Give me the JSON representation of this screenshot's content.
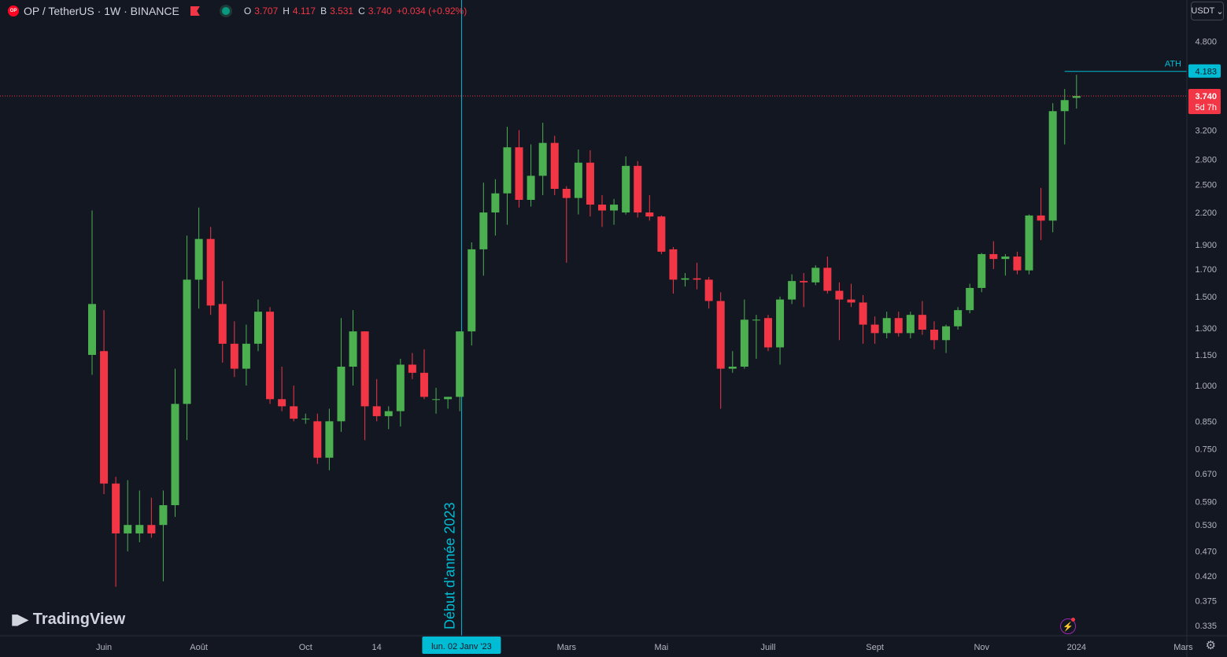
{
  "header": {
    "logo_text": "OP",
    "symbol": "OP / TetherUS · 1W · BINANCE",
    "ohlc": [
      {
        "key": "O",
        "value": "3.707"
      },
      {
        "key": "H",
        "value": "4.117"
      },
      {
        "key": "B",
        "value": "3.531"
      },
      {
        "key": "C",
        "value": "3.740"
      },
      {
        "key": "",
        "value": "+0.034 (+0.92%)"
      }
    ]
  },
  "currency_button": "USDT",
  "branding": "TradingView",
  "colors": {
    "up": "#4caf50",
    "down": "#f23645",
    "accent": "#2962ff",
    "ath_line": "#00bcd4",
    "background": "#131722"
  },
  "chart_data": {
    "type": "candlestick",
    "y_scale": "log",
    "ylim": [
      0.32,
      5.2
    ],
    "y_ticks": [
      "4.800",
      "3.200",
      "2.800",
      "2.500",
      "2.200",
      "1.900",
      "1.700",
      "1.500",
      "1.300",
      "1.150",
      "1.000",
      "0.850",
      "0.750",
      "0.670",
      "0.590",
      "0.530",
      "0.470",
      "0.420",
      "0.375",
      "0.335"
    ],
    "x_tick_labels": [
      {
        "label": "Juin",
        "index": 1
      },
      {
        "label": "Août",
        "index": 9
      },
      {
        "label": "Oct",
        "index": 18
      },
      {
        "label": "14",
        "index": 24
      },
      {
        "label": "Mars",
        "index": 40
      },
      {
        "label": "Mai",
        "index": 48
      },
      {
        "label": "Juill",
        "index": 57
      },
      {
        "label": "Sept",
        "index": 66
      },
      {
        "label": "Nov",
        "index": 75
      },
      {
        "label": "2024",
        "index": 83
      },
      {
        "label": "Mars",
        "index": 92
      }
    ],
    "vertical_marker": {
      "index": 31.15,
      "label": "Début d'année 2023",
      "date_label": "lun. 02 Janv '23"
    },
    "ath": {
      "label": "ATH",
      "value": "4.183",
      "from_index": 82
    },
    "last_price": {
      "value": "3.740",
      "countdown": "5d 7h"
    },
    "candles": [
      {
        "o": 1.15,
        "h": 2.22,
        "l": 1.05,
        "c": 1.45
      },
      {
        "o": 1.17,
        "h": 1.41,
        "l": 0.61,
        "c": 0.64
      },
      {
        "o": 0.64,
        "h": 0.66,
        "l": 0.4,
        "c": 0.51
      },
      {
        "o": 0.51,
        "h": 0.65,
        "l": 0.47,
        "c": 0.53
      },
      {
        "o": 0.51,
        "h": 0.62,
        "l": 0.49,
        "c": 0.53
      },
      {
        "o": 0.53,
        "h": 0.6,
        "l": 0.5,
        "c": 0.51
      },
      {
        "o": 0.53,
        "h": 0.62,
        "l": 0.41,
        "c": 0.58
      },
      {
        "o": 0.58,
        "h": 1.08,
        "l": 0.55,
        "c": 0.92
      },
      {
        "o": 0.92,
        "h": 1.98,
        "l": 0.78,
        "c": 1.62
      },
      {
        "o": 1.62,
        "h": 2.25,
        "l": 1.42,
        "c": 1.95
      },
      {
        "o": 1.95,
        "h": 2.06,
        "l": 1.38,
        "c": 1.44
      },
      {
        "o": 1.45,
        "h": 1.61,
        "l": 1.11,
        "c": 1.21
      },
      {
        "o": 1.21,
        "h": 1.34,
        "l": 1.04,
        "c": 1.08
      },
      {
        "o": 1.08,
        "h": 1.32,
        "l": 1.0,
        "c": 1.21
      },
      {
        "o": 1.21,
        "h": 1.48,
        "l": 1.17,
        "c": 1.4
      },
      {
        "o": 1.4,
        "h": 1.43,
        "l": 0.92,
        "c": 0.94
      },
      {
        "o": 0.94,
        "h": 1.09,
        "l": 0.89,
        "c": 0.91
      },
      {
        "o": 0.91,
        "h": 1.0,
        "l": 0.85,
        "c": 0.86
      },
      {
        "o": 0.86,
        "h": 0.88,
        "l": 0.84,
        "c": 0.86
      },
      {
        "o": 0.85,
        "h": 0.88,
        "l": 0.7,
        "c": 0.72
      },
      {
        "o": 0.72,
        "h": 0.9,
        "l": 0.68,
        "c": 0.85
      },
      {
        "o": 0.85,
        "h": 1.36,
        "l": 0.81,
        "c": 1.09
      },
      {
        "o": 1.09,
        "h": 1.41,
        "l": 1.0,
        "c": 1.28
      },
      {
        "o": 1.28,
        "h": 1.28,
        "l": 0.78,
        "c": 0.91
      },
      {
        "o": 0.91,
        "h": 1.03,
        "l": 0.85,
        "c": 0.87
      },
      {
        "o": 0.87,
        "h": 0.91,
        "l": 0.82,
        "c": 0.89
      },
      {
        "o": 0.89,
        "h": 1.13,
        "l": 0.83,
        "c": 1.1
      },
      {
        "o": 1.1,
        "h": 1.16,
        "l": 1.03,
        "c": 1.06
      },
      {
        "o": 1.06,
        "h": 1.18,
        "l": 0.94,
        "c": 0.95
      },
      {
        "o": 0.94,
        "h": 0.99,
        "l": 0.88,
        "c": 0.94
      },
      {
        "o": 0.94,
        "h": 0.95,
        "l": 0.9,
        "c": 0.95
      },
      {
        "o": 0.95,
        "h": 1.28,
        "l": 0.89,
        "c": 1.28
      },
      {
        "o": 1.28,
        "h": 1.92,
        "l": 1.2,
        "c": 1.86
      },
      {
        "o": 1.86,
        "h": 2.52,
        "l": 1.65,
        "c": 2.2
      },
      {
        "o": 2.2,
        "h": 2.56,
        "l": 1.98,
        "c": 2.4
      },
      {
        "o": 2.4,
        "h": 3.25,
        "l": 2.08,
        "c": 2.96
      },
      {
        "o": 2.96,
        "h": 3.2,
        "l": 2.25,
        "c": 2.33
      },
      {
        "o": 2.33,
        "h": 3.0,
        "l": 2.26,
        "c": 2.6
      },
      {
        "o": 2.6,
        "h": 3.31,
        "l": 2.38,
        "c": 3.02
      },
      {
        "o": 3.02,
        "h": 3.12,
        "l": 2.38,
        "c": 2.45
      },
      {
        "o": 2.45,
        "h": 2.48,
        "l": 1.75,
        "c": 2.35
      },
      {
        "o": 2.35,
        "h": 2.93,
        "l": 2.18,
        "c": 2.76
      },
      {
        "o": 2.76,
        "h": 2.92,
        "l": 2.16,
        "c": 2.28
      },
      {
        "o": 2.28,
        "h": 2.38,
        "l": 2.06,
        "c": 2.22
      },
      {
        "o": 2.22,
        "h": 2.34,
        "l": 2.08,
        "c": 2.28
      },
      {
        "o": 2.2,
        "h": 2.84,
        "l": 2.18,
        "c": 2.72
      },
      {
        "o": 2.72,
        "h": 2.78,
        "l": 2.15,
        "c": 2.2
      },
      {
        "o": 2.2,
        "h": 2.38,
        "l": 2.12,
        "c": 2.16
      },
      {
        "o": 2.16,
        "h": 2.17,
        "l": 1.82,
        "c": 1.84
      },
      {
        "o": 1.86,
        "h": 1.88,
        "l": 1.52,
        "c": 1.62
      },
      {
        "o": 1.62,
        "h": 1.67,
        "l": 1.57,
        "c": 1.63
      },
      {
        "o": 1.63,
        "h": 1.75,
        "l": 1.55,
        "c": 1.62
      },
      {
        "o": 1.62,
        "h": 1.64,
        "l": 1.42,
        "c": 1.47
      },
      {
        "o": 1.47,
        "h": 1.53,
        "l": 0.9,
        "c": 1.08
      },
      {
        "o": 1.08,
        "h": 1.17,
        "l": 1.06,
        "c": 1.09
      },
      {
        "o": 1.09,
        "h": 1.48,
        "l": 1.08,
        "c": 1.35
      },
      {
        "o": 1.35,
        "h": 1.38,
        "l": 1.13,
        "c": 1.35
      },
      {
        "o": 1.36,
        "h": 1.38,
        "l": 1.17,
        "c": 1.19
      },
      {
        "o": 1.19,
        "h": 1.5,
        "l": 1.1,
        "c": 1.48
      },
      {
        "o": 1.48,
        "h": 1.66,
        "l": 1.45,
        "c": 1.61
      },
      {
        "o": 1.61,
        "h": 1.67,
        "l": 1.43,
        "c": 1.6
      },
      {
        "o": 1.6,
        "h": 1.73,
        "l": 1.58,
        "c": 1.71
      },
      {
        "o": 1.71,
        "h": 1.8,
        "l": 1.52,
        "c": 1.54
      },
      {
        "o": 1.54,
        "h": 1.6,
        "l": 1.23,
        "c": 1.48
      },
      {
        "o": 1.48,
        "h": 1.59,
        "l": 1.43,
        "c": 1.46
      },
      {
        "o": 1.46,
        "h": 1.51,
        "l": 1.21,
        "c": 1.32
      },
      {
        "o": 1.32,
        "h": 1.37,
        "l": 1.21,
        "c": 1.27
      },
      {
        "o": 1.27,
        "h": 1.4,
        "l": 1.24,
        "c": 1.36
      },
      {
        "o": 1.36,
        "h": 1.4,
        "l": 1.25,
        "c": 1.27
      },
      {
        "o": 1.27,
        "h": 1.4,
        "l": 1.24,
        "c": 1.38
      },
      {
        "o": 1.38,
        "h": 1.47,
        "l": 1.26,
        "c": 1.29
      },
      {
        "o": 1.29,
        "h": 1.34,
        "l": 1.18,
        "c": 1.23
      },
      {
        "o": 1.23,
        "h": 1.32,
        "l": 1.16,
        "c": 1.31
      },
      {
        "o": 1.31,
        "h": 1.43,
        "l": 1.29,
        "c": 1.41
      },
      {
        "o": 1.41,
        "h": 1.59,
        "l": 1.39,
        "c": 1.56
      },
      {
        "o": 1.56,
        "h": 1.83,
        "l": 1.53,
        "c": 1.82
      },
      {
        "o": 1.82,
        "h": 1.93,
        "l": 1.7,
        "c": 1.78
      },
      {
        "o": 1.78,
        "h": 1.82,
        "l": 1.65,
        "c": 1.8
      },
      {
        "o": 1.8,
        "h": 1.84,
        "l": 1.66,
        "c": 1.69
      },
      {
        "o": 1.69,
        "h": 2.18,
        "l": 1.66,
        "c": 2.17
      },
      {
        "o": 2.17,
        "h": 2.46,
        "l": 1.94,
        "c": 2.12
      },
      {
        "o": 2.12,
        "h": 3.62,
        "l": 2.01,
        "c": 3.49
      },
      {
        "o": 3.49,
        "h": 3.86,
        "l": 3.0,
        "c": 3.67
      },
      {
        "o": 3.707,
        "h": 4.117,
        "l": 3.531,
        "c": 3.74
      }
    ]
  }
}
